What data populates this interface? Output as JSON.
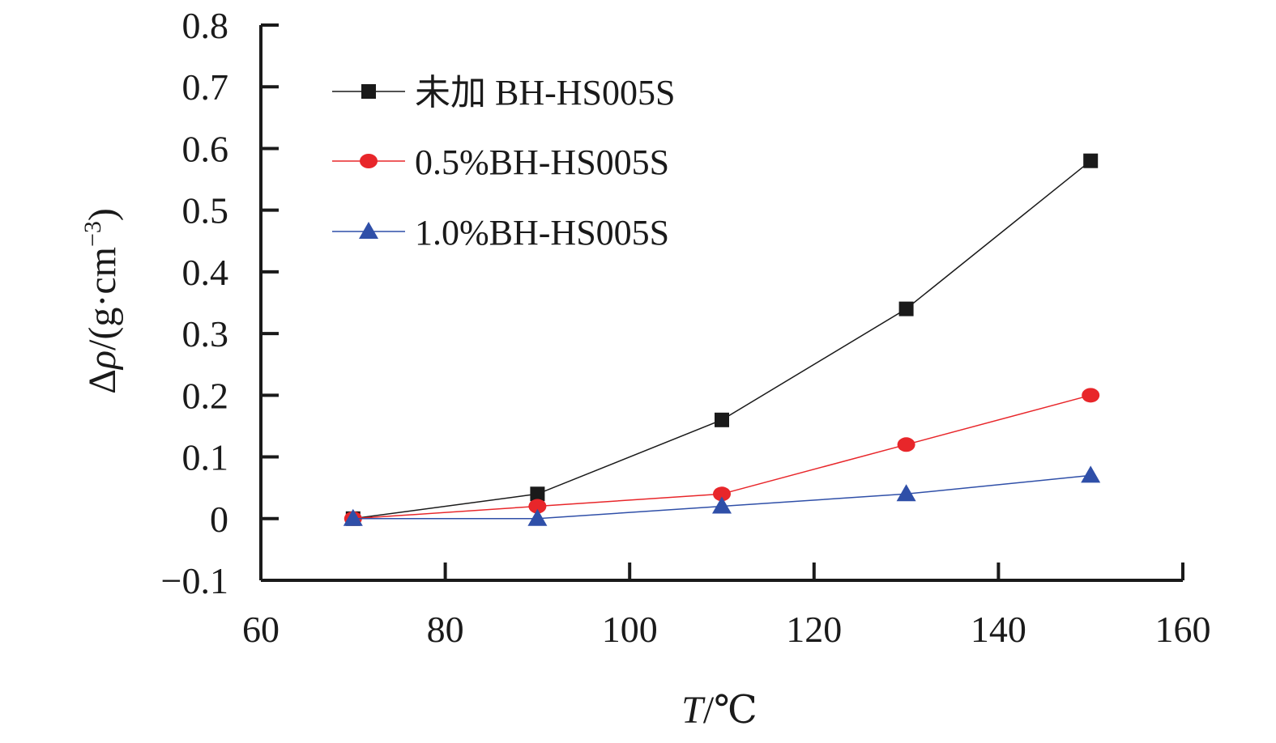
{
  "chart_data": {
    "type": "line",
    "x": [
      70,
      90,
      110,
      130,
      150
    ],
    "xlim": [
      60,
      160
    ],
    "ylim": [
      -0.1,
      0.8
    ],
    "x_ticks": [
      60,
      80,
      100,
      120,
      140,
      160
    ],
    "y_ticks": [
      -0.1,
      0,
      0.1,
      0.2,
      0.3,
      0.4,
      0.5,
      0.6,
      0.7,
      0.8
    ],
    "x_tick_labels": [
      "60",
      "80",
      "100",
      "120",
      "140",
      "160"
    ],
    "y_tick_labels": [
      "−0.1",
      "0",
      "0.1",
      "0.2",
      "0.3",
      "0.4",
      "0.5",
      "0.6",
      "0.7",
      "0.8"
    ],
    "xlabel": {
      "var": "T",
      "unit": "/℃"
    },
    "ylabel": {
      "var": "Δ",
      "rho": "ρ",
      "unit": "/(g·cm",
      "exp": "−3",
      "close": ")"
    },
    "grid": false,
    "legend_position": "top-left",
    "series": [
      {
        "name": "未加 BH-HS005S",
        "values": [
          0,
          0.04,
          0.16,
          0.34,
          0.58
        ],
        "color": "#1a1a1a",
        "marker": "square"
      },
      {
        "name": "0.5%BH-HS005S",
        "values": [
          0,
          0.02,
          0.04,
          0.12,
          0.2
        ],
        "color": "#e8262a",
        "marker": "circle"
      },
      {
        "name": "1.0%BH-HS005S",
        "values": [
          0,
          0,
          0.02,
          0.04,
          0.07
        ],
        "color": "#2f4fa8",
        "marker": "triangle"
      }
    ]
  }
}
